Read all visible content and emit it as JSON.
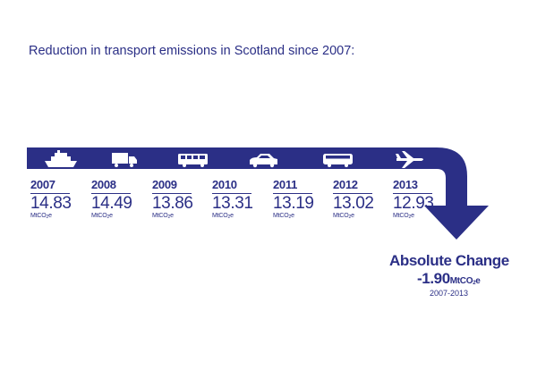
{
  "title": "Reduction in transport emissions in Scotland since 2007:",
  "colors": {
    "primary": "#2b2f86",
    "background": "#ffffff"
  },
  "icons": [
    "ship-icon",
    "lorry-icon",
    "bus-icon",
    "car-icon",
    "coach-icon",
    "aeroplane-icon"
  ],
  "chart_data": {
    "type": "table",
    "categories": [
      "2007",
      "2008",
      "2009",
      "2010",
      "2011",
      "2012",
      "2013"
    ],
    "values": [
      14.83,
      14.49,
      13.86,
      13.31,
      13.19,
      13.02,
      12.93
    ],
    "value_labels": [
      "14.83",
      "14.49",
      "13.86",
      "13.31",
      "13.19",
      "13.02",
      "12.93"
    ],
    "unit": "MtCO2e",
    "absolute_change": {
      "label": "Absolute Change",
      "value": -1.9,
      "value_label": "-1.90",
      "unit": "MtCO2e",
      "period": "2007-2013"
    }
  }
}
